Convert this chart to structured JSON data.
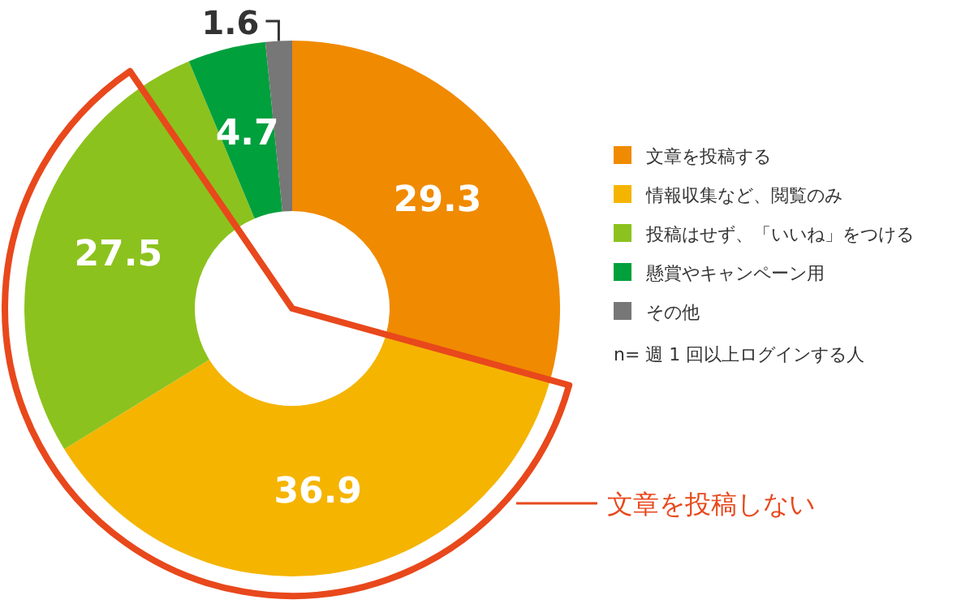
{
  "chart_data": {
    "type": "donut",
    "categories": [
      "文章を投稿する",
      "情報収集など、閲覧のみ",
      "投稿はせず、「いいね」をつける",
      "懸賞やキャンペーン用",
      "その他"
    ],
    "values": [
      29.3,
      36.9,
      27.5,
      4.7,
      1.6
    ],
    "colors": [
      "#f08a00",
      "#f5b400",
      "#8cc21e",
      "#00a03c",
      "#777777"
    ],
    "data_labels": true,
    "legend": "right",
    "annotations": [
      "文章を投稿しない",
      "n= 週 1 回以上ログインする人"
    ]
  }
}
